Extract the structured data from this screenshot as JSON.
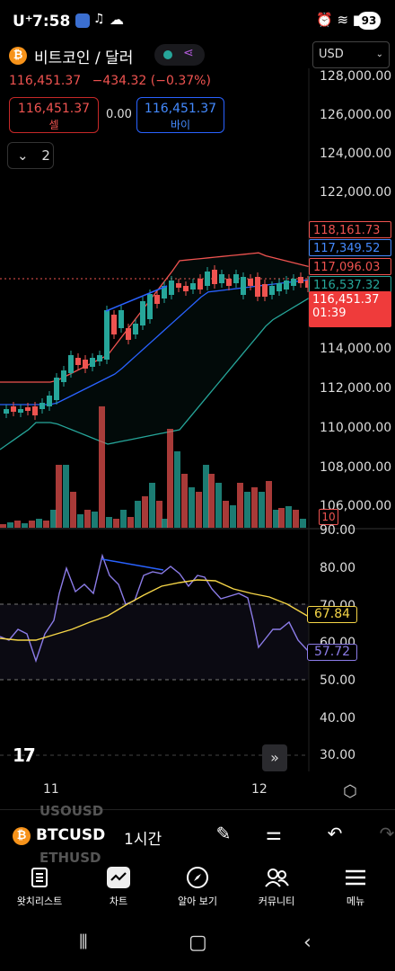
{
  "status_bar": {
    "carrier": "U⁺",
    "time": "7:58",
    "battery": "93"
  },
  "header": {
    "symbol_icon": "bitcoin-icon",
    "symbol_name": "비트코인 / 달러",
    "last_price": "116,451.37",
    "change": "−434.32 (−0.37%)",
    "sell_price": "116,451.37",
    "sell_label": "셀",
    "spread": "0.00",
    "buy_price": "116,451.37",
    "buy_label": "바이",
    "collapse_count": "2",
    "currency": "USD"
  },
  "price_axis": {
    "labels": [
      "128,000.00",
      "126,000.00",
      "124,000.00",
      "122,000.00",
      "114,000.00",
      "112,000.00",
      "110,000.00",
      "108,000.00",
      "106,000.00"
    ]
  },
  "price_tags": [
    {
      "value": "118,161.73",
      "color": "#ef5350"
    },
    {
      "value": "117,349.52",
      "color": "#448aff"
    },
    {
      "value": "117,096.03",
      "color": "#ef5350"
    },
    {
      "value": "116,537.32",
      "color": "#26a69a"
    }
  ],
  "current_tag": {
    "price": "116,451.37",
    "countdown": "01:39"
  },
  "volume_tag": "10",
  "rsi_axis": {
    "labels": [
      "90.00",
      "80.00",
      "70.00",
      "60.00",
      "50.00",
      "40.00",
      "30.00"
    ]
  },
  "rsi_tags": [
    {
      "value": "67.84",
      "color": "#f5d547"
    },
    {
      "value": "57.72",
      "color": "#8c7ce8"
    }
  ],
  "time_axis": {
    "labels": [
      "11",
      "12"
    ]
  },
  "toolbar": {
    "symbol": "BTCUSD",
    "ghost_above": "USOUSD",
    "ghost_below": "ETHUSD",
    "interval": "1시간"
  },
  "nav": {
    "items": [
      {
        "label": "왓치리스트",
        "icon": "watchlist-icon"
      },
      {
        "label": "차트",
        "icon": "chart-icon"
      },
      {
        "label": "알아 보기",
        "icon": "compass-icon"
      },
      {
        "label": "커뮤니티",
        "icon": "community-icon"
      },
      {
        "label": "메뉴",
        "icon": "menu-icon"
      }
    ]
  },
  "colors": {
    "up": "#26a69a",
    "down": "#ef5350",
    "bb_upper": "#ef5350",
    "bb_basis": "#2962ff",
    "bb_lower": "#26a69a",
    "rsi": "#8c7ce8",
    "rsi_ma": "#f5d547"
  }
}
